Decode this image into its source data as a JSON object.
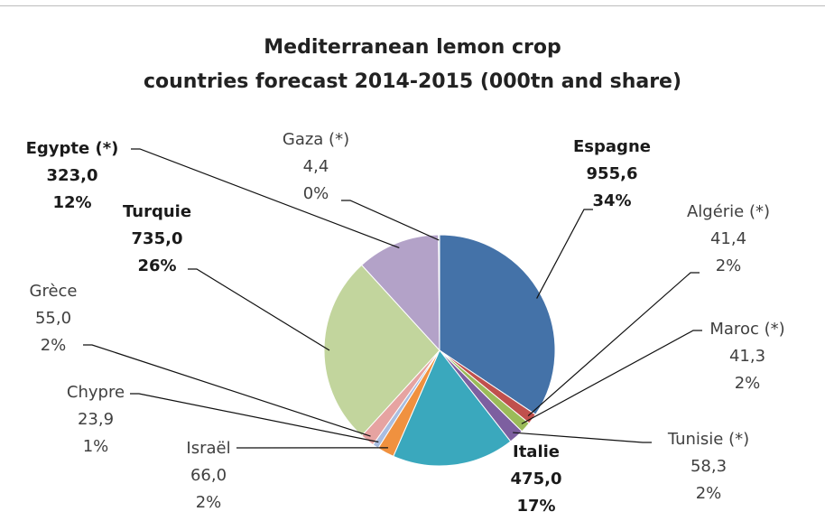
{
  "chart_data": {
    "type": "pie",
    "title_line1": "Mediterranean lemon crop",
    "title_line2": "countries forecast 2014-2015  (000tn and share)",
    "slices": [
      {
        "name": "Espagne",
        "value": "955,6",
        "share": "34%",
        "v": 955.6,
        "color": "#4472a8"
      },
      {
        "name": "Algérie (*)",
        "value": "41,4",
        "share": "2%",
        "v": 41.4,
        "color": "#c0504d"
      },
      {
        "name": "Maroc (*)",
        "value": "41,3",
        "share": "2%",
        "v": 41.3,
        "color": "#9bbb59"
      },
      {
        "name": "Tunisie (*)",
        "value": "58,3",
        "share": "2%",
        "v": 58.3,
        "color": "#7d5fa0"
      },
      {
        "name": "Italie",
        "value": "475,0",
        "share": "17%",
        "v": 475.0,
        "color": "#3aa8bd"
      },
      {
        "name": "Israël",
        "value": "66,0",
        "share": "2%",
        "v": 66.0,
        "color": "#f0913f"
      },
      {
        "name": "Chypre",
        "value": "23,9",
        "share": "1%",
        "v": 23.9,
        "color": "#a9bde0"
      },
      {
        "name": "Grèce",
        "value": "55,0",
        "share": "2%",
        "v": 55.0,
        "color": "#e6a3a1"
      },
      {
        "name": "Turquie",
        "value": "735,0",
        "share": "26%",
        "v": 735.0,
        "color": "#c2d59d"
      },
      {
        "name": "Egypte (*)",
        "value": "323,0",
        "share": "12%",
        "v": 323.0,
        "color": "#b3a2c8"
      },
      {
        "name": "Gaza (*)",
        "value": "4,4",
        "share": "0%",
        "v": 4.4,
        "color": "#8ecfe0"
      }
    ]
  }
}
